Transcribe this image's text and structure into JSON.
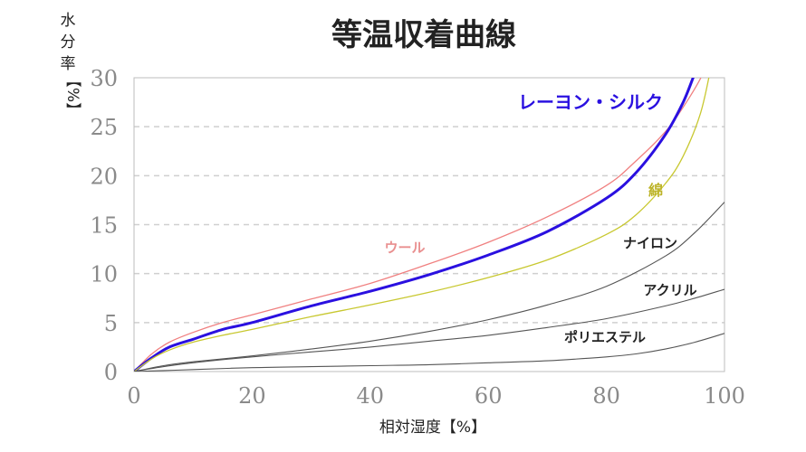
{
  "chart_data": {
    "type": "line",
    "title": "等温収着曲線",
    "xlabel": "相対湿度【%】",
    "ylabel_chars": [
      "水",
      "分",
      "率"
    ],
    "ylabel_unit": "【%】",
    "xlim": [
      0,
      100
    ],
    "ylim": [
      0,
      30
    ],
    "xticks": [
      "0",
      "20",
      "40",
      "60",
      "80",
      "100"
    ],
    "yticks": [
      "0",
      "5",
      "10",
      "15",
      "20",
      "25",
      "30"
    ],
    "grid": "horizontal-dashed",
    "series": [
      {
        "name": "ウール",
        "color": "#f08080",
        "x": [
          0,
          3,
          6,
          10,
          15,
          20,
          30,
          40,
          50,
          60,
          70,
          80,
          85,
          90,
          93,
          96,
          98
        ],
        "y": [
          0,
          1.8,
          3.0,
          4.0,
          5.0,
          5.8,
          7.4,
          9.0,
          11.0,
          13.2,
          15.8,
          19.0,
          21.5,
          24.5,
          27.0,
          30.0,
          33.0
        ]
      },
      {
        "name": "レーヨン・シルク",
        "color": "#2a10e0",
        "x": [
          0,
          3,
          6,
          10,
          15,
          20,
          30,
          40,
          50,
          60,
          70,
          80,
          85,
          90,
          93,
          95,
          96
        ],
        "y": [
          0,
          1.4,
          2.5,
          3.3,
          4.3,
          5.0,
          6.7,
          8.2,
          9.9,
          11.9,
          14.3,
          17.7,
          20.3,
          24.2,
          27.5,
          30.5,
          32.0
        ]
      },
      {
        "name": "綿",
        "color": "#c8c830",
        "x": [
          0,
          3,
          6,
          10,
          15,
          20,
          30,
          40,
          50,
          60,
          70,
          80,
          85,
          90,
          93,
          96,
          98
        ],
        "y": [
          0,
          1.3,
          2.2,
          3.0,
          3.7,
          4.3,
          5.6,
          6.8,
          8.1,
          9.6,
          11.4,
          14.0,
          16.0,
          19.2,
          22.0,
          26.5,
          32.0
        ]
      },
      {
        "name": "ナイロン",
        "color": "#555555",
        "x": [
          0,
          5,
          10,
          20,
          30,
          40,
          50,
          60,
          70,
          80,
          90,
          95,
          100
        ],
        "y": [
          0,
          0.6,
          1.0,
          1.6,
          2.3,
          3.1,
          4.1,
          5.3,
          6.8,
          8.7,
          11.8,
          14.2,
          17.3
        ]
      },
      {
        "name": "アクリル",
        "color": "#555555",
        "x": [
          0,
          5,
          10,
          20,
          30,
          40,
          50,
          60,
          70,
          80,
          90,
          95,
          100
        ],
        "y": [
          0,
          0.5,
          0.9,
          1.5,
          2.0,
          2.5,
          3.1,
          3.7,
          4.5,
          5.4,
          6.7,
          7.5,
          8.4
        ]
      },
      {
        "name": "ポリエステル",
        "color": "#555555",
        "x": [
          0,
          5,
          10,
          20,
          30,
          40,
          50,
          60,
          70,
          80,
          85,
          90,
          95,
          100
        ],
        "y": [
          0,
          0.1,
          0.2,
          0.4,
          0.5,
          0.6,
          0.7,
          0.9,
          1.1,
          1.5,
          1.8,
          2.3,
          3.0,
          3.9
        ]
      }
    ]
  }
}
